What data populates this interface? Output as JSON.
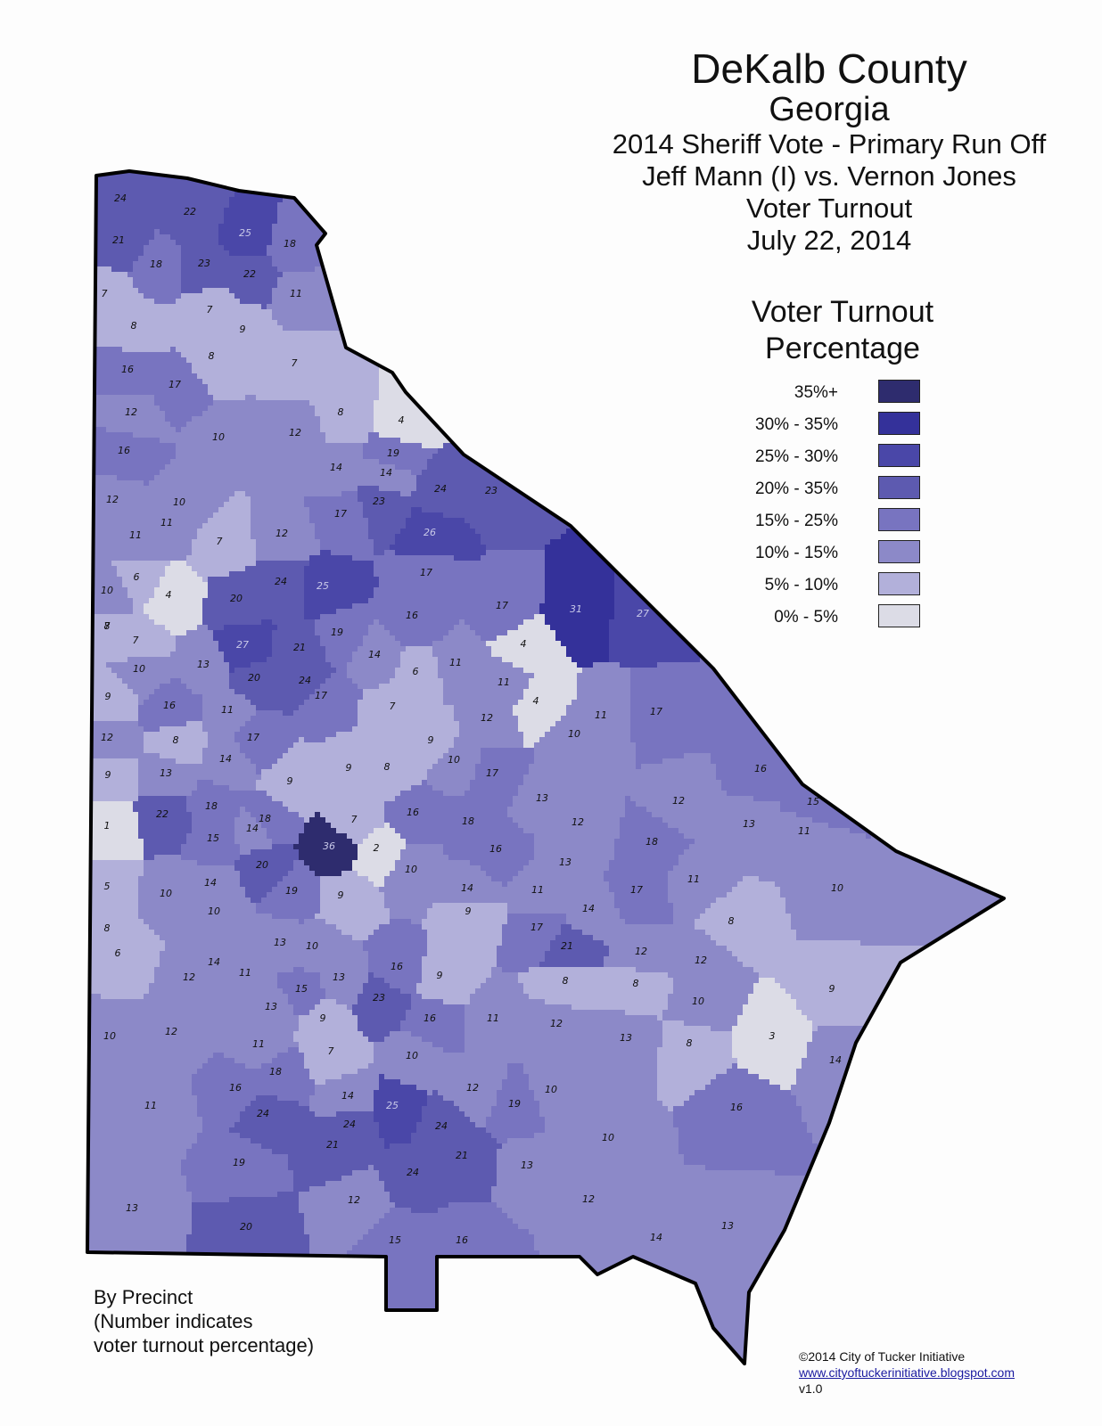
{
  "title": {
    "main": "DeKalb County",
    "sub": "Georgia",
    "lines": [
      "2014 Sheriff Vote - Primary Run Off",
      "Jeff Mann (I) vs. Vernon Jones",
      "Voter Turnout",
      "July 22, 2014"
    ]
  },
  "legend": {
    "title": [
      "Voter Turnout",
      "Percentage"
    ],
    "items": [
      {
        "label": "35%+",
        "color": "#2e2c6e"
      },
      {
        "label": "30% - 35%",
        "color": "#34319a"
      },
      {
        "label": "25% - 30%",
        "color": "#4a47a8"
      },
      {
        "label": "20% - 35%",
        "color": "#5d5ab0"
      },
      {
        "label": "15% - 25%",
        "color": "#7874c0"
      },
      {
        "label": "10% - 15%",
        "color": "#8c89c8"
      },
      {
        "label": "5% - 10%",
        "color": "#b2b0da"
      },
      {
        "label": "0% - 5%",
        "color": "#dcdce6"
      }
    ]
  },
  "note": [
    "By Precinct",
    "(Number indicates",
    "voter turnout percentage)"
  ],
  "credits": {
    "copyright": "©2014 City of Tucker Initiative",
    "url": "www.cityoftuckerinitiative.blogspot.com",
    "version": "v1.0"
  },
  "precinct_turnouts": [
    24,
    22,
    21,
    25,
    18,
    18,
    23,
    22,
    7,
    7,
    11,
    8,
    9,
    8,
    7,
    16,
    17,
    12,
    8,
    4,
    10,
    12,
    16,
    19,
    14,
    14,
    24,
    12,
    10,
    17,
    23,
    26,
    23,
    7,
    11,
    12,
    11,
    6,
    10,
    4,
    7,
    24,
    25,
    17,
    20,
    19,
    16,
    17,
    31,
    27,
    8,
    27,
    21,
    7,
    13,
    14,
    4,
    20,
    24,
    17,
    11,
    6,
    11,
    10,
    9,
    16,
    11,
    7,
    4,
    11,
    17,
    10,
    12,
    12,
    8,
    17,
    9,
    13,
    14,
    9,
    9,
    8,
    9,
    10,
    17,
    16,
    22,
    18,
    18,
    16,
    1,
    15,
    14,
    36,
    7,
    13,
    12,
    12,
    13,
    15,
    18,
    20,
    2,
    10,
    16,
    13,
    18,
    11,
    5,
    10,
    14,
    19,
    9,
    11,
    10,
    14,
    11,
    17,
    10,
    8,
    9,
    13,
    8,
    17,
    14,
    21,
    12,
    12,
    10,
    6,
    14,
    12,
    11,
    15,
    16,
    13,
    9,
    9,
    8,
    8,
    12,
    23,
    13,
    16,
    11,
    9,
    10,
    12,
    10,
    13,
    8,
    3,
    14,
    11,
    7,
    10,
    18,
    16,
    16,
    14,
    12,
    10,
    25,
    19,
    24,
    24,
    10,
    11,
    24,
    21,
    24,
    21,
    13,
    19,
    12,
    13,
    12,
    20,
    13,
    15,
    16,
    14
  ]
}
